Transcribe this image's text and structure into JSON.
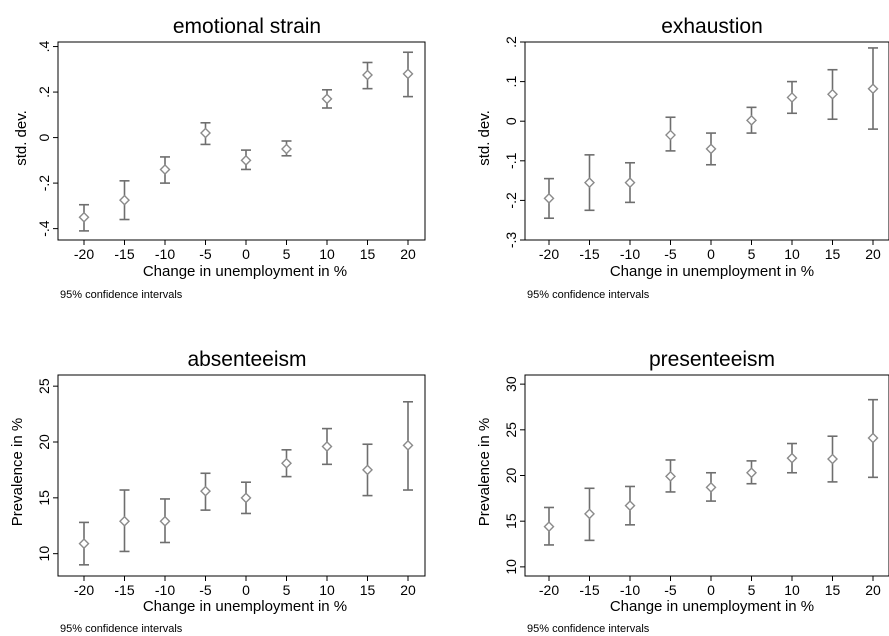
{
  "chart_data": [
    {
      "type": "scatter",
      "title": "emotional strain",
      "xlabel": "Change in unemployment in %",
      "ylabel": "std. dev.",
      "note": "95% confidence intervals",
      "x": [
        -20,
        -15,
        -10,
        -5,
        0,
        5,
        10,
        15,
        20
      ],
      "xticks": [
        "-20",
        "-15",
        "-10",
        "-5",
        "0",
        "5",
        "10",
        "15",
        "20"
      ],
      "yticks": [
        -0.4,
        -0.2,
        0,
        0.2,
        0.4
      ],
      "ytick_labels": [
        "-.4",
        "-.2",
        "0",
        ".2",
        ".4"
      ],
      "ylim": [
        -0.45,
        0.42
      ],
      "series": [
        {
          "y": [
            -0.35,
            -0.275,
            -0.14,
            0.02,
            -0.1,
            -0.05,
            0.17,
            0.275,
            0.28
          ],
          "ci_low": [
            -0.41,
            -0.36,
            -0.2,
            -0.03,
            -0.14,
            -0.08,
            0.13,
            0.215,
            0.18
          ],
          "ci_high": [
            -0.295,
            -0.19,
            -0.085,
            0.065,
            -0.055,
            -0.015,
            0.21,
            0.33,
            0.375
          ]
        }
      ],
      "grid": false
    },
    {
      "type": "scatter",
      "title": "exhaustion",
      "xlabel": "Change in unemployment in %",
      "ylabel": "std. dev.",
      "note": "95% confidence intervals",
      "x": [
        -20,
        -15,
        -10,
        -5,
        0,
        5,
        10,
        15,
        20
      ],
      "xticks": [
        "-20",
        "-15",
        "-10",
        "-5",
        "0",
        "5",
        "10",
        "15",
        "20"
      ],
      "yticks": [
        -0.3,
        -0.2,
        -0.1,
        0,
        0.1,
        0.2
      ],
      "ytick_labels": [
        "-.3",
        "-.2",
        "-.1",
        "0",
        ".1",
        ".2"
      ],
      "ylim": [
        -0.3,
        0.2
      ],
      "series": [
        {
          "y": [
            -0.195,
            -0.155,
            -0.155,
            -0.035,
            -0.07,
            0.002,
            0.06,
            0.068,
            0.082
          ],
          "ci_low": [
            -0.245,
            -0.225,
            -0.205,
            -0.075,
            -0.11,
            -0.03,
            0.02,
            0.005,
            -0.02
          ],
          "ci_high": [
            -0.145,
            -0.085,
            -0.105,
            0.01,
            -0.03,
            0.035,
            0.1,
            0.13,
            0.185
          ]
        }
      ],
      "grid": false
    },
    {
      "type": "scatter",
      "title": "absenteeism",
      "xlabel": "Change in unemployment in %",
      "ylabel": "Prevalence in %",
      "note": "95% confidence intervals",
      "x": [
        -20,
        -15,
        -10,
        -5,
        0,
        5,
        10,
        15,
        20
      ],
      "xticks": [
        "-20",
        "-15",
        "-10",
        "-5",
        "0",
        "5",
        "10",
        "15",
        "20"
      ],
      "yticks": [
        10,
        15,
        20,
        25
      ],
      "ytick_labels": [
        "10",
        "15",
        "20",
        "25"
      ],
      "ylim": [
        8,
        26
      ],
      "series": [
        {
          "y": [
            10.9,
            12.9,
            12.9,
            15.6,
            15.0,
            18.1,
            19.6,
            17.5,
            19.7
          ],
          "ci_low": [
            9.0,
            10.2,
            11.0,
            13.9,
            13.6,
            16.9,
            18.0,
            15.2,
            15.7
          ],
          "ci_high": [
            12.8,
            15.7,
            14.9,
            17.2,
            16.4,
            19.3,
            21.2,
            19.8,
            23.6
          ]
        }
      ],
      "grid": false
    },
    {
      "type": "scatter",
      "title": "presenteeism",
      "xlabel": "Change in unemployment in %",
      "ylabel": "Prevalence in %",
      "note": "95% confidence intervals",
      "x": [
        -20,
        -15,
        -10,
        -5,
        0,
        5,
        10,
        15,
        20
      ],
      "xticks": [
        "-20",
        "-15",
        "-10",
        "-5",
        "0",
        "5",
        "10",
        "15",
        "20"
      ],
      "yticks": [
        10,
        15,
        20,
        25,
        30
      ],
      "ytick_labels": [
        "10",
        "15",
        "20",
        "25",
        "30"
      ],
      "ylim": [
        9,
        31
      ],
      "series": [
        {
          "y": [
            14.4,
            15.8,
            16.7,
            19.9,
            18.7,
            20.3,
            21.9,
            21.8,
            24.1
          ],
          "ci_low": [
            12.4,
            12.9,
            14.6,
            18.2,
            17.2,
            19.1,
            20.3,
            19.3,
            19.8
          ],
          "ci_high": [
            16.5,
            18.6,
            18.8,
            21.7,
            20.3,
            21.6,
            23.5,
            24.3,
            28.3
          ]
        }
      ],
      "grid": false
    }
  ]
}
